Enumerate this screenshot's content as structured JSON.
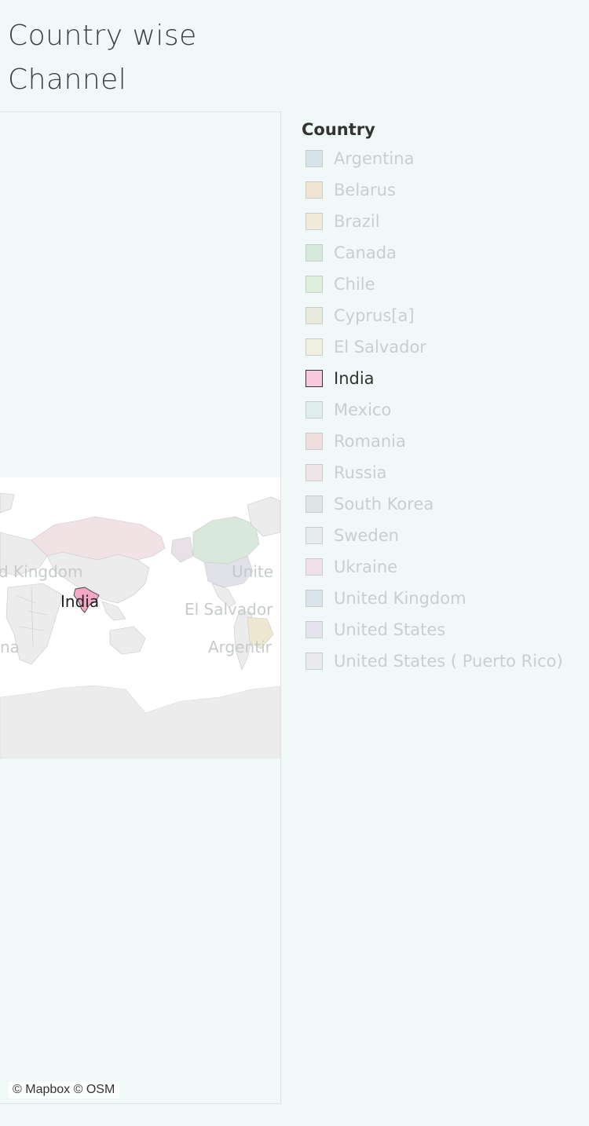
{
  "title_lines": [
    "Country wise",
    "Channel"
  ],
  "legend": {
    "title": "Country",
    "items": [
      {
        "label": "Argentina",
        "color": "#d6e3ea",
        "active": false
      },
      {
        "label": "Belarus",
        "color": "#f1e4d2",
        "active": false
      },
      {
        "label": "Brazil",
        "color": "#f0ead9",
        "active": false
      },
      {
        "label": "Canada",
        "color": "#d6e8da",
        "active": false
      },
      {
        "label": "Chile",
        "color": "#def0dc",
        "active": false
      },
      {
        "label": "Cyprus[a]",
        "color": "#e8eadb",
        "active": false
      },
      {
        "label": "El Salvador",
        "color": "#f1efdf",
        "active": false
      },
      {
        "label": "India",
        "color": "#f7cadd",
        "active": true
      },
      {
        "label": "Mexico",
        "color": "#dfedec",
        "active": false
      },
      {
        "label": "Romania",
        "color": "#f0dde0",
        "active": false
      },
      {
        "label": "Russia",
        "color": "#f1e4e8",
        "active": false
      },
      {
        "label": "South Korea",
        "color": "#dfe4e4",
        "active": false
      },
      {
        "label": "Sweden",
        "color": "#e7ebeb",
        "active": false
      },
      {
        "label": "Ukraine",
        "color": "#efe0ea",
        "active": false
      },
      {
        "label": "United Kingdom",
        "color": "#d9e4ea",
        "active": false
      },
      {
        "label": "United States",
        "color": "#e3e3ec",
        "active": false
      },
      {
        "label": "United States ( Puerto Rico)",
        "color": "#e8eaec",
        "active": false
      }
    ]
  },
  "map": {
    "labels": {
      "united_kingdom": "d Kingdom",
      "india": "India",
      "united_states": "Unite",
      "el_salvador": "El Salvador",
      "argentina": "Argentir",
      "na": "na"
    },
    "attribution": "© Mapbox © OSM",
    "colors": {
      "ocean": "#ffffff",
      "land": "#ececec",
      "country_border": "#c9c9c9",
      "india": "#f3a9c6",
      "russia": "#f1e2e6",
      "canada": "#d8e8da",
      "usa": "#e1e1ea",
      "brazil": "#efe7d2",
      "belarus": "#e8e2e8"
    }
  }
}
